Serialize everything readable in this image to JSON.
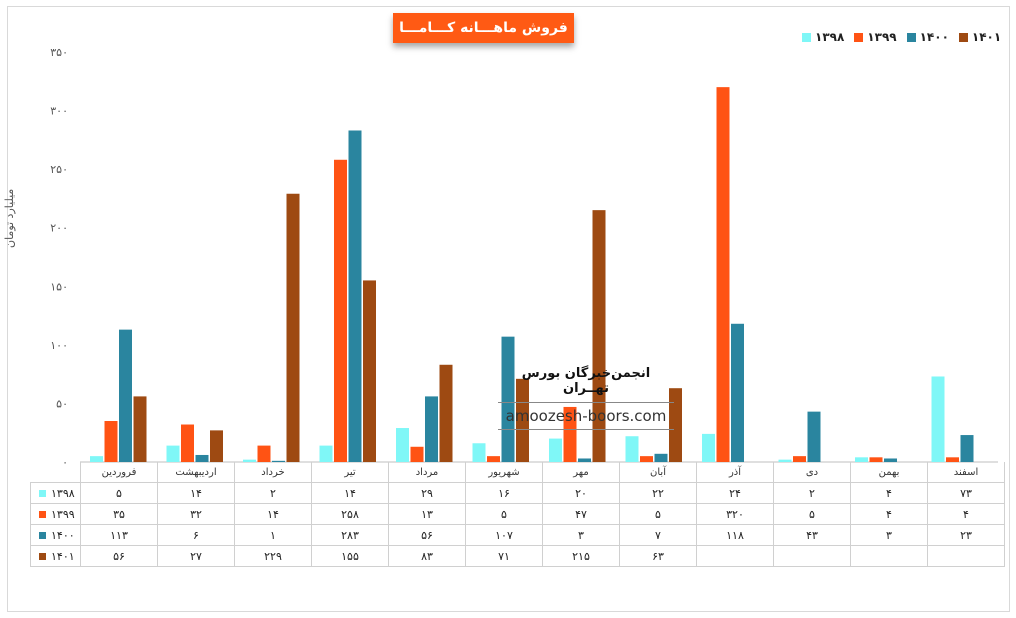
{
  "title": "فروش ماهـــانه کـــامـــا",
  "ylabel": "میلیارد تومان",
  "watermark": {
    "title": "انجمن‌خبرگان بورس تهــران",
    "url": "amoozesh-boors.com"
  },
  "colors": {
    "1398": "#7ff7f7",
    "1399": "#ff5314",
    "1400": "#2a859f",
    "1401": "#9e4a12",
    "grid": "#e6e6e6",
    "axis": "#bfbfbf",
    "accent": "#ff5a14"
  },
  "chart_data": {
    "type": "bar",
    "title": "فروش ماهـــانه کـــامـــا",
    "ylabel": "میلیارد تومان",
    "ylim": [
      0,
      350
    ],
    "yticks": [
      "۰",
      "۵۰",
      "۱۰۰",
      "۱۵۰",
      "۲۰۰",
      "۲۵۰",
      "۳۰۰",
      "۳۵۰"
    ],
    "ytick_values": [
      0,
      50,
      100,
      150,
      200,
      250,
      300,
      350
    ],
    "grid": false,
    "legend": "top-right",
    "categories": [
      "فروردین",
      "اردیبهشت",
      "خرداد",
      "تیر",
      "مرداد",
      "شهریور",
      "مهر",
      "آبان",
      "آذر",
      "دی",
      "بهمن",
      "اسفند"
    ],
    "series": [
      {
        "name": "۱۳۹۸",
        "color": "#7ff7f7",
        "values": [
          5,
          14,
          2,
          14,
          29,
          16,
          20,
          22,
          24,
          2,
          4,
          73
        ],
        "labels": [
          "۵",
          "۱۴",
          "۲",
          "۱۴",
          "۲۹",
          "۱۶",
          "۲۰",
          "۲۲",
          "۲۴",
          "۲",
          "۴",
          "۷۳"
        ]
      },
      {
        "name": "۱۳۹۹",
        "color": "#ff5314",
        "values": [
          35,
          32,
          14,
          258,
          13,
          5,
          47,
          5,
          320,
          5,
          4,
          4
        ],
        "labels": [
          "۳۵",
          "۳۲",
          "۱۴",
          "۲۵۸",
          "۱۳",
          "۵",
          "۴۷",
          "۵",
          "۳۲۰",
          "۵",
          "۴",
          "۴"
        ]
      },
      {
        "name": "۱۴۰۰",
        "color": "#2a859f",
        "values": [
          113,
          6,
          1,
          283,
          56,
          107,
          3,
          7,
          118,
          43,
          3,
          23
        ],
        "labels": [
          "۱۱۳",
          "۶",
          "۱",
          "۲۸۳",
          "۵۶",
          "۱۰۷",
          "۳",
          "۷",
          "۱۱۸",
          "۴۳",
          "۳",
          "۲۳"
        ]
      },
      {
        "name": "۱۴۰۱",
        "color": "#9e4a12",
        "values": [
          56,
          27,
          229,
          155,
          83,
          71,
          215,
          63,
          null,
          null,
          null,
          null
        ],
        "labels": [
          "۵۶",
          "۲۷",
          "۲۲۹",
          "۱۵۵",
          "۸۳",
          "۷۱",
          "۲۱۵",
          "۶۳",
          "",
          "",
          "",
          ""
        ]
      }
    ],
    "legend_order": [
      "۱۳۹۸",
      "۱۳۹۹",
      "۱۴۰۰",
      "۱۴۰۱"
    ]
  }
}
